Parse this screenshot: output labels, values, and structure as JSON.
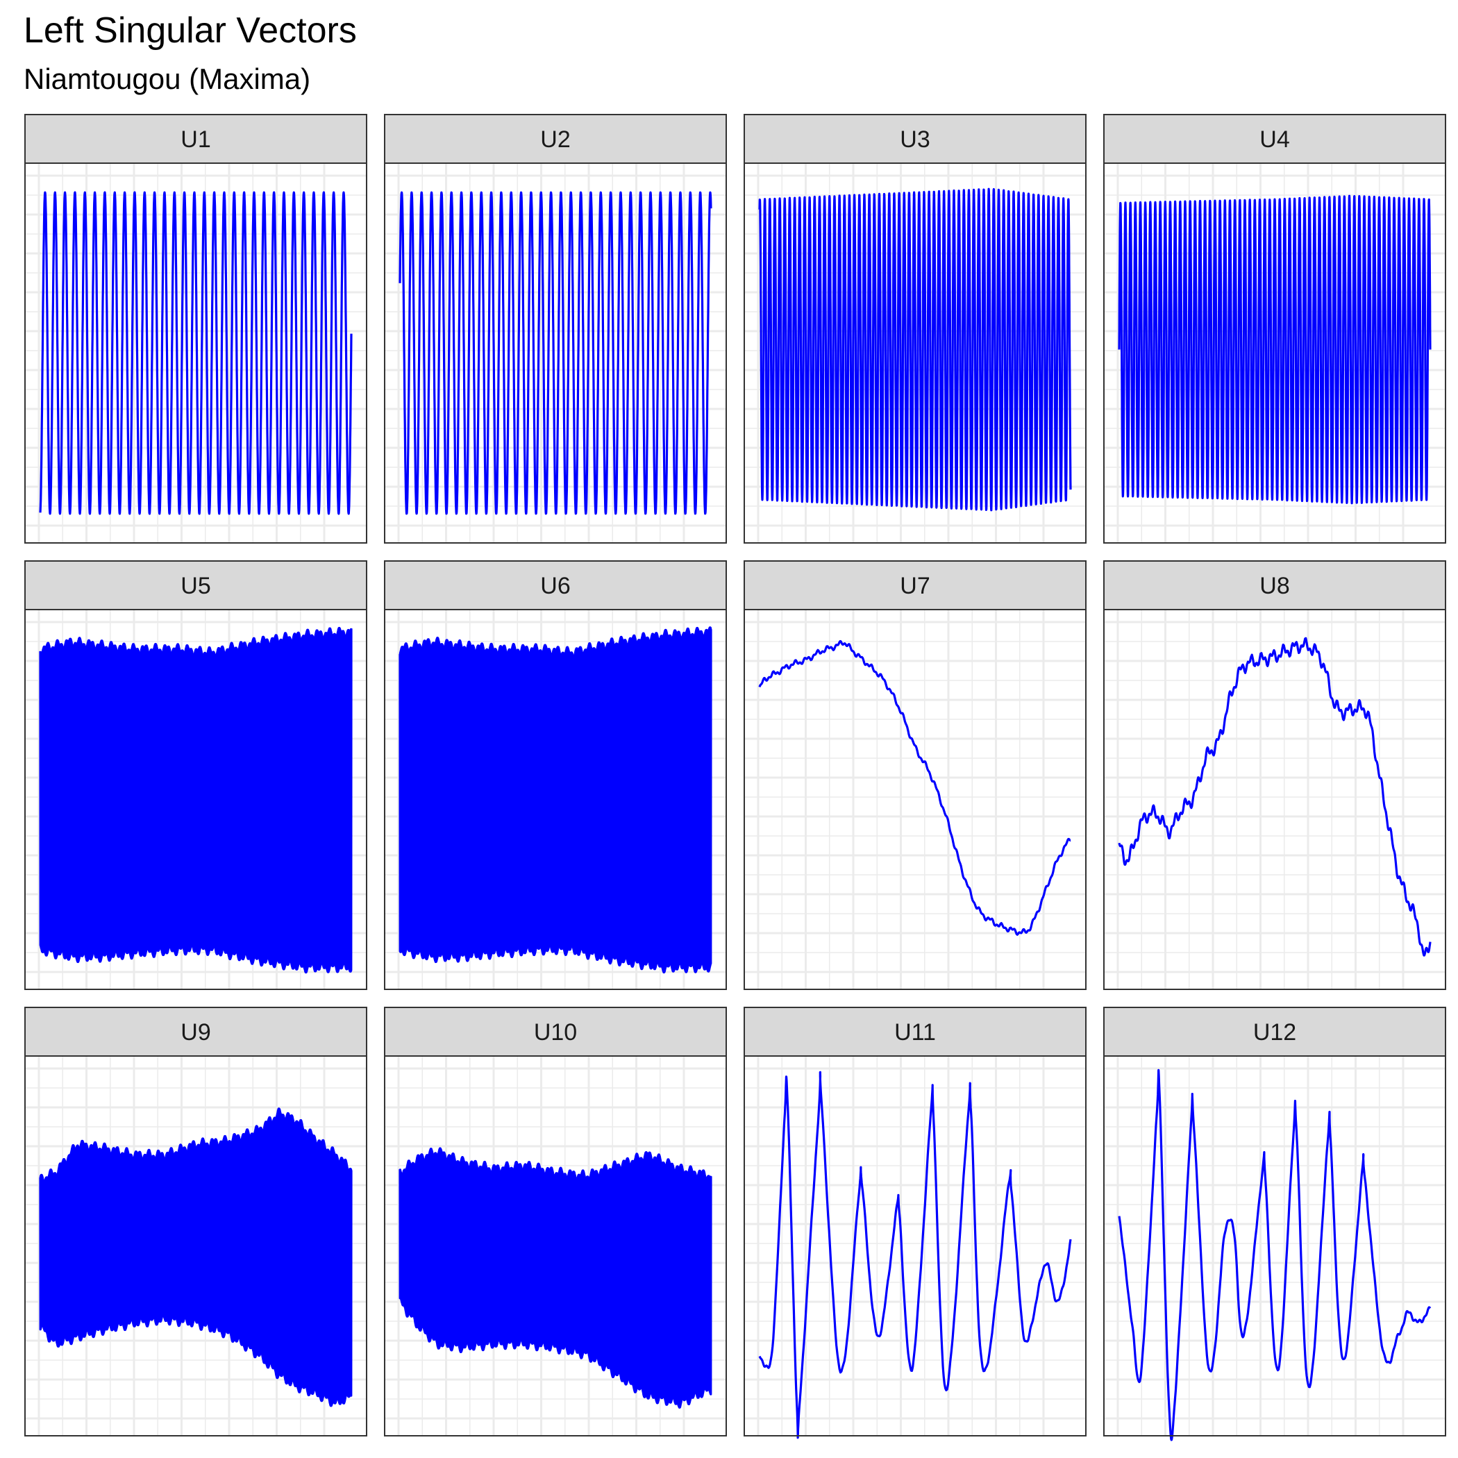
{
  "chart_data": {
    "type": "line",
    "title": "Left Singular Vectors",
    "subtitle": "Niamtougou (Maxima)",
    "layout": "facet-grid 3x4",
    "grid": true,
    "axes_labels_shown": false,
    "line_color": "#0000ff",
    "panels": [
      {
        "label": "U1",
        "kind": "sine",
        "cycles": 31.25,
        "phase": -1.45,
        "amp": 0.92,
        "center": 0.0,
        "n": 2000
      },
      {
        "label": "U2",
        "kind": "sine",
        "cycles": 31.25,
        "phase": 0.45,
        "amp": 0.92,
        "center": 0.0,
        "n": 2000
      },
      {
        "label": "U3",
        "kind": "sine",
        "cycles": 62.5,
        "phase": 1.2,
        "amp": 0.88,
        "center": 0.02,
        "n": 2600,
        "envelope": [
          [
            0,
            0.86
          ],
          [
            0.5,
            0.9
          ],
          [
            0.75,
            0.92
          ],
          [
            1,
            0.86
          ]
        ]
      },
      {
        "label": "U4",
        "kind": "sine",
        "cycles": 62.5,
        "phase": 0.0,
        "amp": 0.85,
        "center": 0.02,
        "n": 2600,
        "envelope": [
          [
            0,
            0.84
          ],
          [
            0.5,
            0.86
          ],
          [
            0.75,
            0.88
          ],
          [
            1,
            0.86
          ]
        ]
      },
      {
        "label": "U5",
        "kind": "dense",
        "center": 0.0,
        "n": 2400,
        "upper": [
          [
            0,
            0.86
          ],
          [
            0.1,
            0.9
          ],
          [
            0.2,
            0.88
          ],
          [
            0.3,
            0.86
          ],
          [
            0.45,
            0.86
          ],
          [
            0.55,
            0.84
          ],
          [
            0.7,
            0.9
          ],
          [
            0.85,
            0.94
          ],
          [
            1,
            0.96
          ]
        ],
        "lower": [
          [
            0,
            -0.86
          ],
          [
            0.1,
            -0.9
          ],
          [
            0.2,
            -0.9
          ],
          [
            0.3,
            -0.88
          ],
          [
            0.45,
            -0.86
          ],
          [
            0.55,
            -0.86
          ],
          [
            0.7,
            -0.92
          ],
          [
            0.85,
            -0.96
          ],
          [
            1,
            -0.96
          ]
        ]
      },
      {
        "label": "U6",
        "kind": "dense",
        "center": 0.0,
        "n": 2400,
        "upper": [
          [
            0,
            0.86
          ],
          [
            0.1,
            0.9
          ],
          [
            0.2,
            0.88
          ],
          [
            0.3,
            0.86
          ],
          [
            0.45,
            0.86
          ],
          [
            0.55,
            0.84
          ],
          [
            0.7,
            0.9
          ],
          [
            0.85,
            0.94
          ],
          [
            1,
            0.96
          ]
        ],
        "lower": [
          [
            0,
            -0.86
          ],
          [
            0.1,
            -0.9
          ],
          [
            0.2,
            -0.9
          ],
          [
            0.3,
            -0.88
          ],
          [
            0.45,
            -0.86
          ],
          [
            0.55,
            -0.86
          ],
          [
            0.7,
            -0.92
          ],
          [
            0.85,
            -0.96
          ],
          [
            1,
            -0.96
          ]
        ]
      },
      {
        "label": "U7",
        "kind": "points",
        "values": [
          [
            0,
            0.64
          ],
          [
            0.02,
            0.69
          ],
          [
            0.06,
            0.73
          ],
          [
            0.1,
            0.77
          ],
          [
            0.15,
            0.8
          ],
          [
            0.2,
            0.85
          ],
          [
            0.25,
            0.88
          ],
          [
            0.27,
            0.9
          ],
          [
            0.3,
            0.85
          ],
          [
            0.35,
            0.77
          ],
          [
            0.4,
            0.68
          ],
          [
            0.45,
            0.52
          ],
          [
            0.5,
            0.3
          ],
          [
            0.55,
            0.14
          ],
          [
            0.6,
            -0.1
          ],
          [
            0.65,
            -0.4
          ],
          [
            0.7,
            -0.62
          ],
          [
            0.75,
            -0.7
          ],
          [
            0.8,
            -0.74
          ],
          [
            0.85,
            -0.76
          ],
          [
            0.88,
            -0.7
          ],
          [
            0.92,
            -0.52
          ],
          [
            0.96,
            -0.34
          ],
          [
            1,
            -0.22
          ]
        ]
      },
      {
        "label": "U8",
        "kind": "points",
        "values": [
          [
            0,
            -0.26
          ],
          [
            0.02,
            -0.34
          ],
          [
            0.04,
            -0.3
          ],
          [
            0.07,
            -0.14
          ],
          [
            0.1,
            -0.08
          ],
          [
            0.13,
            -0.1
          ],
          [
            0.16,
            -0.18
          ],
          [
            0.2,
            -0.06
          ],
          [
            0.24,
            0.02
          ],
          [
            0.28,
            0.24
          ],
          [
            0.32,
            0.34
          ],
          [
            0.36,
            0.6
          ],
          [
            0.4,
            0.76
          ],
          [
            0.46,
            0.8
          ],
          [
            0.5,
            0.82
          ],
          [
            0.55,
            0.86
          ],
          [
            0.6,
            0.88
          ],
          [
            0.65,
            0.8
          ],
          [
            0.69,
            0.56
          ],
          [
            0.72,
            0.5
          ],
          [
            0.76,
            0.52
          ],
          [
            0.8,
            0.48
          ],
          [
            0.84,
            0.1
          ],
          [
            0.87,
            -0.18
          ],
          [
            0.9,
            -0.44
          ],
          [
            0.93,
            -0.58
          ],
          [
            0.96,
            -0.72
          ],
          [
            0.98,
            -0.9
          ],
          [
            1,
            -0.8
          ]
        ]
      },
      {
        "label": "U9",
        "kind": "dense",
        "center": 0.0,
        "n": 2400,
        "upper": [
          [
            0,
            0.38
          ],
          [
            0.05,
            0.42
          ],
          [
            0.12,
            0.58
          ],
          [
            0.2,
            0.56
          ],
          [
            0.3,
            0.52
          ],
          [
            0.4,
            0.52
          ],
          [
            0.5,
            0.58
          ],
          [
            0.6,
            0.6
          ],
          [
            0.7,
            0.66
          ],
          [
            0.77,
            0.76
          ],
          [
            0.82,
            0.72
          ],
          [
            0.88,
            0.62
          ],
          [
            0.95,
            0.52
          ],
          [
            1,
            0.44
          ]
        ],
        "lower": [
          [
            0,
            -0.46
          ],
          [
            0.05,
            -0.56
          ],
          [
            0.12,
            -0.52
          ],
          [
            0.2,
            -0.48
          ],
          [
            0.3,
            -0.44
          ],
          [
            0.4,
            -0.42
          ],
          [
            0.5,
            -0.44
          ],
          [
            0.6,
            -0.5
          ],
          [
            0.7,
            -0.62
          ],
          [
            0.77,
            -0.74
          ],
          [
            0.82,
            -0.8
          ],
          [
            0.88,
            -0.84
          ],
          [
            0.95,
            -0.9
          ],
          [
            1,
            -0.86
          ]
        ]
      },
      {
        "label": "U10",
        "kind": "dense",
        "center": 0.0,
        "n": 2400,
        "upper": [
          [
            0,
            0.42
          ],
          [
            0.06,
            0.5
          ],
          [
            0.12,
            0.54
          ],
          [
            0.2,
            0.48
          ],
          [
            0.3,
            0.44
          ],
          [
            0.4,
            0.46
          ],
          [
            0.5,
            0.42
          ],
          [
            0.6,
            0.4
          ],
          [
            0.7,
            0.46
          ],
          [
            0.8,
            0.52
          ],
          [
            0.9,
            0.44
          ],
          [
            1,
            0.4
          ]
        ],
        "lower": [
          [
            0,
            -0.32
          ],
          [
            0.06,
            -0.46
          ],
          [
            0.12,
            -0.56
          ],
          [
            0.2,
            -0.58
          ],
          [
            0.3,
            -0.56
          ],
          [
            0.4,
            -0.56
          ],
          [
            0.5,
            -0.58
          ],
          [
            0.6,
            -0.62
          ],
          [
            0.7,
            -0.74
          ],
          [
            0.8,
            -0.86
          ],
          [
            0.9,
            -0.9
          ],
          [
            1,
            -0.82
          ]
        ]
      },
      {
        "label": "U11",
        "kind": "points",
        "values": [
          [
            0,
            -0.62
          ],
          [
            0.04,
            -0.6
          ],
          [
            0.08,
            0.72
          ],
          [
            0.09,
            0.82
          ],
          [
            0.12,
            -0.92
          ],
          [
            0.13,
            -0.88
          ],
          [
            0.19,
            0.76
          ],
          [
            0.2,
            0.8
          ],
          [
            0.26,
            -0.72
          ],
          [
            0.32,
            0.32
          ],
          [
            0.33,
            0.34
          ],
          [
            0.38,
            -0.52
          ],
          [
            0.44,
            0.2
          ],
          [
            0.45,
            0.18
          ],
          [
            0.49,
            -0.7
          ],
          [
            0.55,
            0.74
          ],
          [
            0.56,
            0.72
          ],
          [
            0.6,
            -0.82
          ],
          [
            0.67,
            0.74
          ],
          [
            0.68,
            0.76
          ],
          [
            0.72,
            -0.72
          ],
          [
            0.8,
            0.34
          ],
          [
            0.81,
            0.32
          ],
          [
            0.85,
            -0.52
          ],
          [
            0.88,
            -0.4
          ],
          [
            0.92,
            -0.1
          ],
          [
            0.96,
            -0.32
          ],
          [
            1,
            0.02
          ]
        ]
      },
      {
        "label": "U12",
        "kind": "points",
        "values": [
          [
            0,
            0.18
          ],
          [
            0.04,
            -0.42
          ],
          [
            0.07,
            -0.72
          ],
          [
            0.12,
            0.72
          ],
          [
            0.13,
            0.86
          ],
          [
            0.16,
            -0.92
          ],
          [
            0.18,
            -0.86
          ],
          [
            0.23,
            0.66
          ],
          [
            0.24,
            0.7
          ],
          [
            0.29,
            -0.72
          ],
          [
            0.34,
            0.08
          ],
          [
            0.37,
            0.06
          ],
          [
            0.4,
            -0.52
          ],
          [
            0.46,
            0.42
          ],
          [
            0.47,
            0.38
          ],
          [
            0.51,
            -0.72
          ],
          [
            0.56,
            0.64
          ],
          [
            0.57,
            0.66
          ],
          [
            0.61,
            -0.82
          ],
          [
            0.67,
            0.6
          ],
          [
            0.68,
            0.58
          ],
          [
            0.72,
            -0.66
          ],
          [
            0.78,
            0.4
          ],
          [
            0.79,
            0.38
          ],
          [
            0.85,
            -0.62
          ],
          [
            0.9,
            -0.5
          ],
          [
            0.93,
            -0.38
          ],
          [
            0.96,
            -0.44
          ],
          [
            1,
            -0.36
          ]
        ]
      }
    ]
  }
}
